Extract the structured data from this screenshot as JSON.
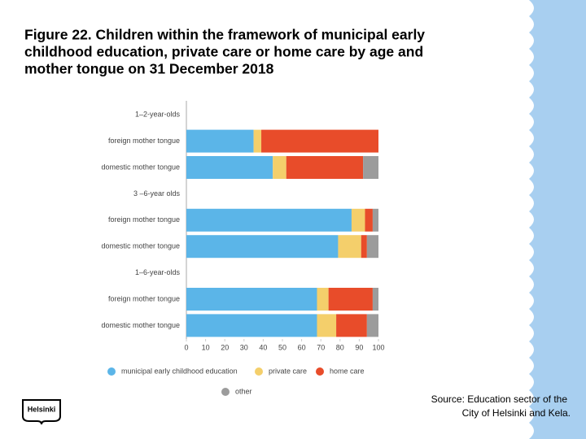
{
  "chart_data": {
    "type": "stacked-barh",
    "title": [
      "Figure 22. Children within the framework of municipal early",
      "childhood education, private care or home care by age and",
      "mother tongue on 31 December 2018"
    ],
    "categories": [
      "1–2-year-olds",
      "foreign mother tongue",
      "domestic mother tongue",
      "3 –6-year olds",
      "foreign mother tongue",
      "domestic mother tongue",
      "1–6-year-olds",
      "foreign mother tongue",
      "domestic mother tongue"
    ],
    "series": [
      {
        "name": "municipal early childhood education",
        "color": "#5bb5e8",
        "values": [
          null,
          35,
          45,
          null,
          86,
          79,
          null,
          68,
          68
        ]
      },
      {
        "name": "private care",
        "color": "#f4cf6b",
        "values": [
          null,
          4,
          7,
          null,
          7,
          12,
          null,
          6,
          10
        ]
      },
      {
        "name": "home care",
        "color": "#e84c2a",
        "values": [
          null,
          61,
          40,
          null,
          4,
          3,
          null,
          23,
          16
        ]
      },
      {
        "name": "other",
        "color": "#9c9c9c",
        "values": [
          null,
          0,
          8,
          null,
          3,
          6,
          null,
          3,
          6
        ]
      }
    ],
    "xlim": [
      0,
      100
    ],
    "xticks": [
      0,
      10,
      20,
      30,
      40,
      50,
      60,
      70,
      80,
      90,
      100
    ],
    "source": [
      "Source: Education sector of the",
      "City of Helsinki and Kela."
    ],
    "logo": "Helsinki"
  }
}
